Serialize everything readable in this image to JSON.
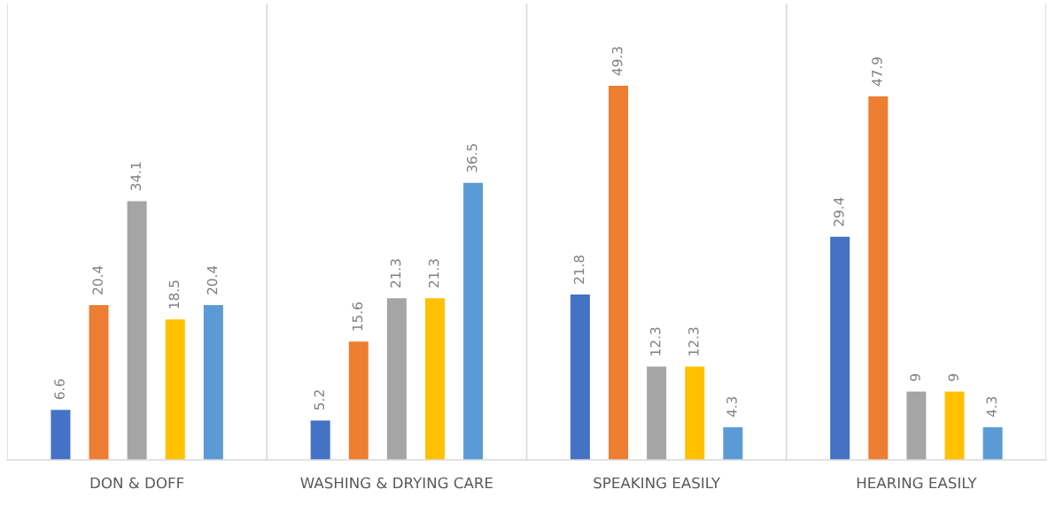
{
  "chart_data": {
    "type": "bar",
    "categories": [
      "DON & DOFF",
      "WASHING & DRYING CARE",
      "SPEAKING EASILY",
      "HEARING EASILY"
    ],
    "series": [
      {
        "color": "#4472c4",
        "values": [
          6.6,
          5.2,
          21.8,
          29.4
        ]
      },
      {
        "color": "#ed7d31",
        "values": [
          20.4,
          15.6,
          49.3,
          47.9
        ]
      },
      {
        "color": "#a5a5a5",
        "values": [
          34.1,
          21.3,
          12.3,
          9
        ]
      },
      {
        "color": "#ffc000",
        "values": [
          18.5,
          21.3,
          12.3,
          9
        ]
      },
      {
        "color": "#5b9bd5",
        "values": [
          20.4,
          36.5,
          4.3,
          4.3
        ]
      }
    ],
    "data_labels": true,
    "grid": "x"
  }
}
